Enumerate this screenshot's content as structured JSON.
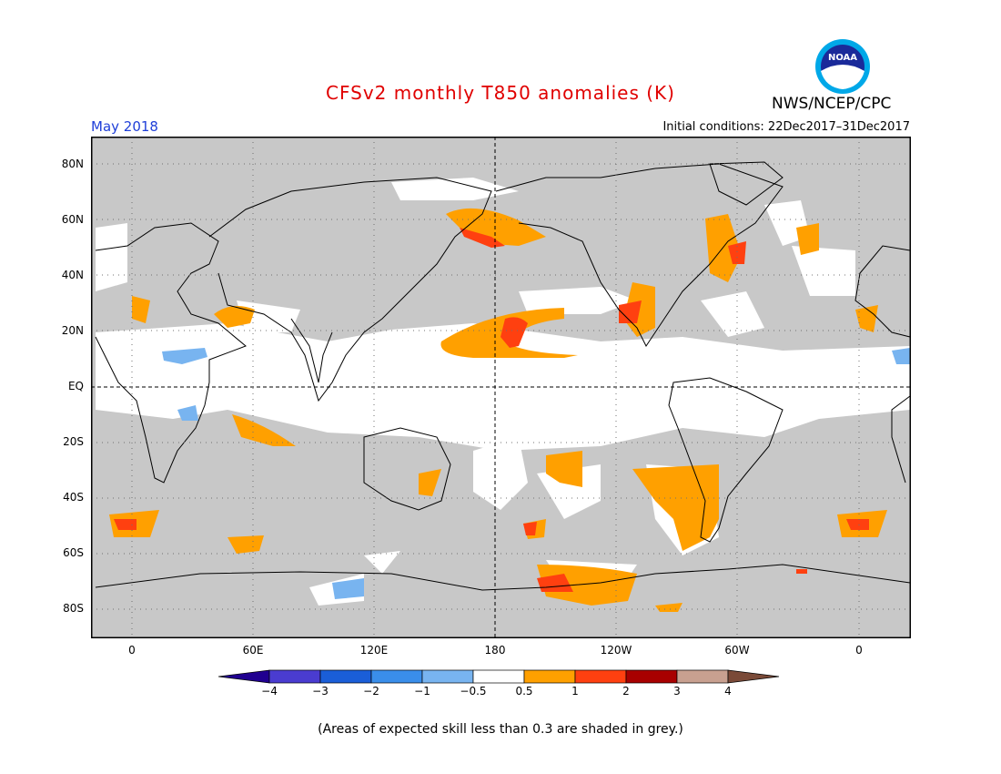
{
  "header": {
    "title": "CFSv2 monthly T850 anomalies (K)",
    "agency": "NWS/NCEP/CPC",
    "period": "May 2018",
    "initial_conditions": "Initial conditions: 22Dec2017–31Dec2017",
    "logo_text": "NOAA"
  },
  "colors": {
    "title": "#e00000",
    "period": "#1f3fd8",
    "grey_low_skill": "#c8c8c8",
    "anomaly_0_5_1": "#ffa000",
    "anomaly_1_2": "#ff4010",
    "anomaly_neg_1_neg_0_5": "#78b4f0",
    "land_outline": "#000000"
  },
  "map": {
    "latitude_labels": [
      "80N",
      "60N",
      "40N",
      "20N",
      "EQ",
      "20S",
      "40S",
      "60S",
      "80S"
    ],
    "longitude_labels": [
      "0",
      "60E",
      "120E",
      "180",
      "120W",
      "60W",
      "0"
    ]
  },
  "colorbar": {
    "tick_labels": [
      "−4",
      "−3",
      "−2",
      "−1",
      "−0.5",
      "0.5",
      "1",
      "2",
      "3",
      "4"
    ],
    "colors": [
      "#200090",
      "#4a3cd0",
      "#1a5ed8",
      "#3a8eea",
      "#78b4f0",
      "#ffffff",
      "#ffa000",
      "#ff4010",
      "#a80000",
      "#c8a090",
      "#7a4a38"
    ]
  },
  "footnote": "(Areas of expected skill less than 0.3 are shaded in grey.)"
}
